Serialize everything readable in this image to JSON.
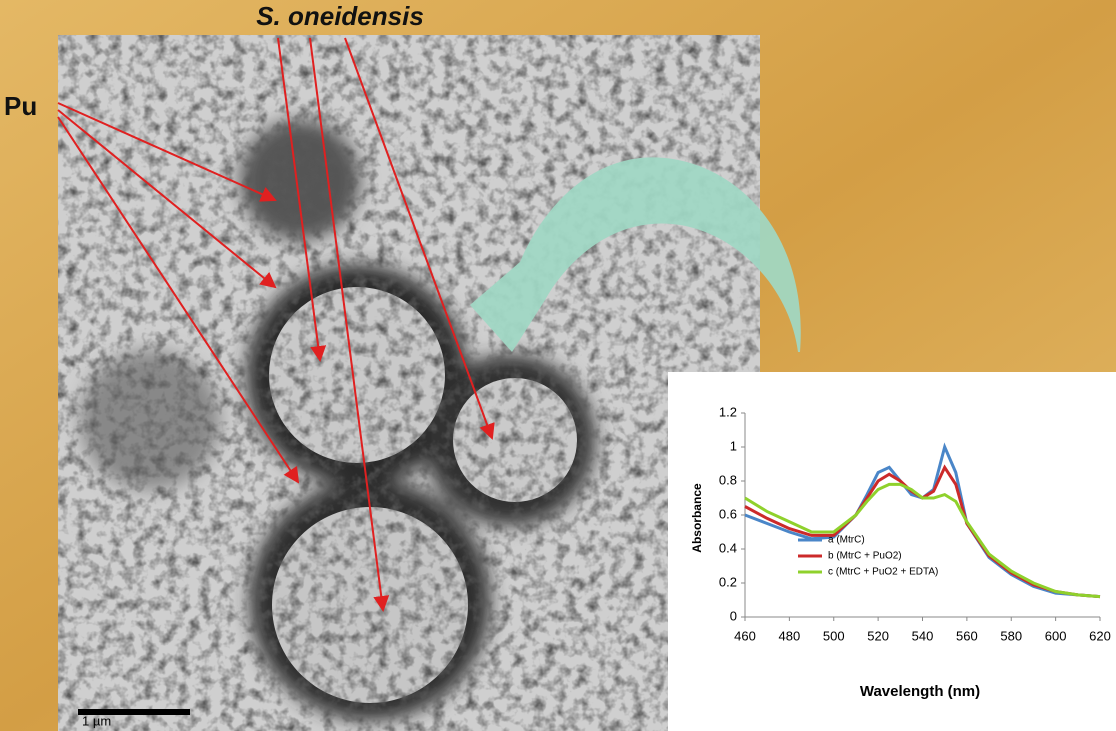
{
  "labels": {
    "organism": "S. oneidensis",
    "element": "Pu",
    "scale_bar": "1 µm"
  },
  "chart_data": {
    "type": "line",
    "x_label": "Wavelength (nm)",
    "y_label": "Absorbance",
    "x": [
      460,
      470,
      480,
      490,
      500,
      510,
      515,
      520,
      525,
      530,
      535,
      540,
      545,
      550,
      555,
      560,
      570,
      580,
      590,
      600,
      610,
      620
    ],
    "series": [
      {
        "name": "a  (MtrC)",
        "color": "#4a86c8",
        "values": [
          0.6,
          0.55,
          0.5,
          0.46,
          0.47,
          0.6,
          0.72,
          0.85,
          0.88,
          0.8,
          0.72,
          0.7,
          0.75,
          1.0,
          0.85,
          0.55,
          0.35,
          0.25,
          0.18,
          0.14,
          0.13,
          0.12
        ]
      },
      {
        "name": "b  (MtrC + PuO2)",
        "color": "#cc2a2a",
        "values": [
          0.65,
          0.58,
          0.52,
          0.48,
          0.48,
          0.6,
          0.7,
          0.8,
          0.84,
          0.8,
          0.74,
          0.7,
          0.74,
          0.88,
          0.78,
          0.55,
          0.36,
          0.26,
          0.19,
          0.15,
          0.13,
          0.12
        ]
      },
      {
        "name": "c  (MtrC + PuO2 + EDTA)",
        "color": "#8fd12c",
        "values": [
          0.7,
          0.62,
          0.56,
          0.5,
          0.5,
          0.6,
          0.68,
          0.75,
          0.78,
          0.78,
          0.75,
          0.7,
          0.7,
          0.72,
          0.68,
          0.56,
          0.37,
          0.27,
          0.2,
          0.15,
          0.13,
          0.12
        ]
      }
    ],
    "xlim": [
      460,
      620
    ],
    "xticks": [
      460,
      480,
      500,
      520,
      540,
      560,
      580,
      600,
      620
    ],
    "ylim": [
      0,
      1.2
    ],
    "yticks": [
      0,
      0.2,
      0.4,
      0.6,
      0.8,
      1,
      1.2
    ],
    "grid": false,
    "legend": "lower-left"
  }
}
